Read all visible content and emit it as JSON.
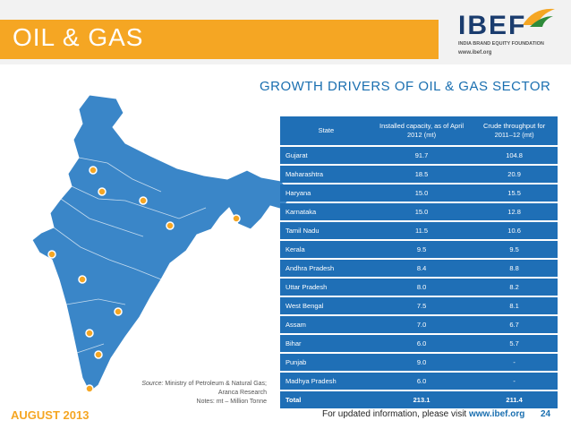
{
  "header": {
    "title": "OIL & GAS",
    "logo_text": "IBEF",
    "logo_subtitle": "INDIA BRAND EQUITY FOUNDATION",
    "logo_url": "www.ibef.org"
  },
  "section_title": "GROWTH DRIVERS OF OIL & GAS SECTOR",
  "table": {
    "headers": [
      "State",
      "Installed capacity, as of April 2012 (mt)",
      "Crude throughput for 2011–12 (mt)"
    ],
    "rows": [
      {
        "state": "Gujarat",
        "capacity": "91.7",
        "crude": "104.8"
      },
      {
        "state": "Maharashtra",
        "capacity": "18.5",
        "crude": "20.9"
      },
      {
        "state": "Haryana",
        "capacity": "15.0",
        "crude": "15.5"
      },
      {
        "state": "Karnataka",
        "capacity": "15.0",
        "crude": "12.8"
      },
      {
        "state": "Tamil Nadu",
        "capacity": "11.5",
        "crude": "10.6"
      },
      {
        "state": "Kerala",
        "capacity": "9.5",
        "crude": "9.5"
      },
      {
        "state": "Andhra Pradesh",
        "capacity": "8.4",
        "crude": "8.8"
      },
      {
        "state": "Uttar Pradesh",
        "capacity": "8.0",
        "crude": "8.2"
      },
      {
        "state": "West Bengal",
        "capacity": "7.5",
        "crude": "8.1"
      },
      {
        "state": "Assam",
        "capacity": "7.0",
        "crude": "6.7"
      },
      {
        "state": "Bihar",
        "capacity": "6.0",
        "crude": "5.7"
      },
      {
        "state": "Punjab",
        "capacity": "9.0",
        "crude": "-"
      },
      {
        "state": "Madhya Pradesh",
        "capacity": "6.0",
        "crude": "-"
      }
    ],
    "total": {
      "state": "Total",
      "capacity": "213.1",
      "crude": "211.4"
    }
  },
  "source": {
    "label": "Source:",
    "text": " Ministry of Petroleum & Natural Gas; Aranca Research",
    "notes": "Notes: mt – Million Tonne"
  },
  "footer": {
    "date": "AUGUST 2013",
    "info_prefix": "For updated information, please visit ",
    "info_link": "www.ibef.org",
    "page": "24"
  },
  "colors": {
    "accent_orange": "#f5a623",
    "brand_blue": "#1f6fb6",
    "title_blue": "#1a6fb0",
    "map_blue": "#3a86c8",
    "marker": "#f5a623"
  }
}
